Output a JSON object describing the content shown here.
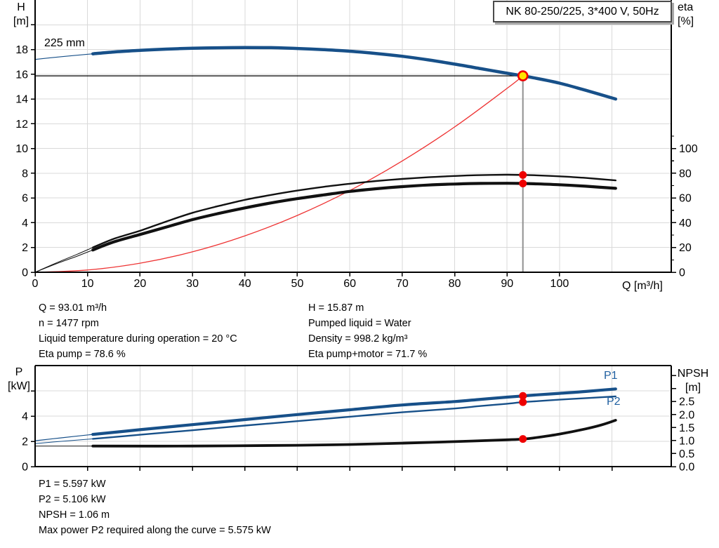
{
  "title_box": {
    "label": "NK 80-250/225, 3*400 V, 50Hz"
  },
  "axis_titles": {
    "head_unit_1": "H",
    "head_unit_2": "[m]",
    "eta_unit_1": "eta",
    "eta_unit_2": "[%]",
    "flow_unit": "Q [m³/h]",
    "power_unit_1": "P",
    "power_unit_2": "[kW]",
    "npsh_unit_1": "NPSH",
    "npsh_unit_2": "[m]"
  },
  "curve_labels": {
    "impeller": "225 mm",
    "p1": "P1",
    "p2": "P2"
  },
  "info_top": {
    "left": [
      "Q = 93.01 m³/h",
      "n = 1477 rpm",
      "Liquid temperature during operation = 20 °C",
      "Eta pump = 78.6 %"
    ],
    "right": [
      "H = 15.87 m",
      "Pumped liquid = Water",
      "Density = 998.2 kg/m³",
      "Eta pump+motor = 71.7 %"
    ]
  },
  "info_bottom": [
    "P1 = 5.597 kW",
    "P2 = 5.106 kW",
    "NPSH = 1.06 m",
    "Max power P2 required along the curve = 5.575 kW"
  ],
  "colors": {
    "curve_blue": "#175089",
    "curve_black": "#111111",
    "curve_red": "#ee3333",
    "marker_red": "#ee0000",
    "marker_yellow": "#ffe400",
    "grid": "#d9d9d9",
    "axis": "#000000",
    "duty_gray": "#909090",
    "label_blue": "#1f5fa0"
  },
  "chart_data": [
    {
      "type": "line",
      "title": "Pump curve H/eta vs Q",
      "x_axis": {
        "label": "Q [m³/h]",
        "min": 0,
        "max": 121.3,
        "tick_values": [
          0,
          10,
          20,
          30,
          40,
          50,
          60,
          70,
          80,
          90,
          100
        ],
        "tick_labels": [
          "0",
          "10",
          "20",
          "30",
          "40",
          "50",
          "60",
          "70",
          "80",
          "90",
          "100"
        ],
        "grid_values": [
          10,
          20,
          30,
          40,
          50,
          60,
          70,
          80,
          90,
          100,
          110
        ]
      },
      "y_left": {
        "label": "H [m]",
        "min": 0,
        "max": 22,
        "tick_values": [
          0,
          2,
          4,
          6,
          8,
          10,
          12,
          14,
          16,
          18,
          20
        ],
        "tick_labels": [
          "0",
          "2",
          "4",
          "6",
          "8",
          "10",
          "12",
          "14",
          "16",
          "18",
          ""
        ],
        "grid_values": [
          2,
          4,
          6,
          8,
          10,
          12,
          14,
          16,
          18,
          20
        ]
      },
      "y_right": {
        "label": "eta [%]",
        "min": 0,
        "max": 220,
        "tick_values": [
          0,
          20,
          40,
          60,
          80,
          100
        ],
        "tick_labels": [
          "0",
          "20",
          "40",
          "60",
          "80",
          "100"
        ],
        "minor_tick_values": [
          10,
          30,
          50,
          70,
          90,
          110
        ]
      },
      "series": [
        {
          "name": "system-curve",
          "axis": "left",
          "points": [
            [
              0,
              0
            ],
            [
              10,
              0.18
            ],
            [
              20,
              0.73
            ],
            [
              30,
              1.65
            ],
            [
              40,
              2.94
            ],
            [
              50,
              4.59
            ],
            [
              60,
              6.6
            ],
            [
              70,
              8.99
            ],
            [
              80,
              11.74
            ],
            [
              90,
              14.86
            ],
            [
              93.01,
              15.87
            ]
          ]
        },
        {
          "name": "eta-pump",
          "axis": "right",
          "points_thin": [
            [
              0,
              0
            ],
            [
              4,
              7.5
            ],
            [
              8,
              14.5
            ],
            [
              11,
              20
            ]
          ],
          "points": [
            [
              11,
              20
            ],
            [
              15,
              27
            ],
            [
              20,
              33.5
            ],
            [
              25,
              41
            ],
            [
              30,
              48
            ],
            [
              35,
              53.5
            ],
            [
              40,
              58.5
            ],
            [
              45,
              62.5
            ],
            [
              50,
              66
            ],
            [
              55,
              69
            ],
            [
              60,
              71.5
            ],
            [
              65,
              73.7
            ],
            [
              70,
              75.4
            ],
            [
              75,
              76.8
            ],
            [
              80,
              77.8
            ],
            [
              85,
              78.5
            ],
            [
              90,
              78.8
            ],
            [
              93.01,
              78.6
            ],
            [
              95,
              78.4
            ],
            [
              100,
              77.5
            ],
            [
              105,
              76.2
            ],
            [
              110.7,
              74.2
            ]
          ]
        },
        {
          "name": "eta-pump-motor",
          "axis": "right",
          "points_thin": [
            [
              0,
              0
            ],
            [
              4,
              6.8
            ],
            [
              8,
              13
            ],
            [
              11,
              18
            ]
          ],
          "points": [
            [
              11,
              18
            ],
            [
              15,
              24.5
            ],
            [
              20,
              30.5
            ],
            [
              25,
              36.5
            ],
            [
              30,
              42.5
            ],
            [
              35,
              47.5
            ],
            [
              40,
              52
            ],
            [
              45,
              56
            ],
            [
              50,
              59.5
            ],
            [
              55,
              62.5
            ],
            [
              60,
              65.3
            ],
            [
              65,
              67.5
            ],
            [
              70,
              69.2
            ],
            [
              75,
              70.5
            ],
            [
              80,
              71.3
            ],
            [
              85,
              71.8
            ],
            [
              90,
              71.9
            ],
            [
              93.01,
              71.7
            ],
            [
              95,
              71.5
            ],
            [
              100,
              70.7
            ],
            [
              105,
              69.5
            ],
            [
              110.7,
              67.8
            ]
          ]
        },
        {
          "name": "head-225mm",
          "axis": "left",
          "label": "225 mm",
          "points_thin": [
            [
              0,
              17.2
            ],
            [
              5,
              17.42
            ],
            [
              11,
              17.65
            ]
          ],
          "points": [
            [
              11,
              17.65
            ],
            [
              15,
              17.8
            ],
            [
              20,
              17.93
            ],
            [
              25,
              18.03
            ],
            [
              30,
              18.1
            ],
            [
              35,
              18.14
            ],
            [
              40,
              18.16
            ],
            [
              45,
              18.15
            ],
            [
              50,
              18.08
            ],
            [
              55,
              17.99
            ],
            [
              60,
              17.86
            ],
            [
              65,
              17.68
            ],
            [
              70,
              17.45
            ],
            [
              75,
              17.16
            ],
            [
              80,
              16.82
            ],
            [
              85,
              16.45
            ],
            [
              90,
              16.08
            ],
            [
              93.01,
              15.87
            ],
            [
              95,
              15.72
            ],
            [
              100,
              15.28
            ],
            [
              105,
              14.7
            ],
            [
              110.7,
              14.0
            ]
          ]
        }
      ],
      "duty_point": {
        "q": 93.01,
        "h": 15.87,
        "eta_pump": 78.6,
        "eta_pump_motor": 71.7
      },
      "duty_lines": {
        "horizontal_value": 15.87,
        "vertical_q": 93.01
      },
      "markers": [
        {
          "q": 93.01,
          "v": 78.6,
          "axis": "right",
          "style": "red"
        },
        {
          "q": 93.01,
          "v": 71.7,
          "axis": "right",
          "style": "red"
        },
        {
          "q": 93.01,
          "v": 15.87,
          "axis": "left",
          "style": "duty"
        }
      ]
    },
    {
      "type": "line",
      "title": "Power / NPSH vs Q",
      "x_axis": {
        "label": "",
        "min": 0,
        "max": 121.3,
        "tick_values": [
          10,
          20,
          30,
          40,
          50,
          60,
          70,
          80,
          90,
          100,
          110
        ],
        "tick_labels": [
          "",
          "",
          "",
          "",
          "",
          "",
          "",
          "",
          "",
          "",
          ""
        ],
        "grid_values": [
          10,
          20,
          30,
          40,
          50,
          60,
          70,
          80,
          90,
          100,
          110
        ]
      },
      "y_left": {
        "label": "P [kW]",
        "min": 0,
        "max": 8,
        "tick_values": [
          0,
          2,
          4,
          6
        ],
        "tick_labels": [
          "0",
          "2",
          "4",
          ""
        ],
        "grid_values": [
          2,
          4,
          6
        ]
      },
      "y_right": {
        "label": "NPSH [m]",
        "min": 0,
        "max": 3.88,
        "tick_values": [
          0,
          0.5,
          1,
          1.5,
          2,
          2.5,
          3,
          3.5
        ],
        "tick_labels": [
          "0.0",
          "0.5",
          "1.0",
          "1.5",
          "2.0",
          "2.5",
          "",
          ""
        ],
        "minor_tick_values": []
      },
      "series": [
        {
          "name": "npsh",
          "axis": "right",
          "points_thin": [
            [
              0,
              0.79
            ],
            [
              11,
              0.79
            ]
          ],
          "points": [
            [
              11,
              0.79
            ],
            [
              30,
              0.79
            ],
            [
              50,
              0.82
            ],
            [
              60,
              0.85
            ],
            [
              70,
              0.9
            ],
            [
              80,
              0.96
            ],
            [
              90,
              1.03
            ],
            [
              93.01,
              1.06
            ],
            [
              95,
              1.1
            ],
            [
              100,
              1.25
            ],
            [
              105,
              1.45
            ],
            [
              108,
              1.6
            ],
            [
              110.7,
              1.78
            ]
          ]
        },
        {
          "name": "p2",
          "axis": "left",
          "points_thin": [
            [
              0,
              1.82
            ],
            [
              5,
              2.0
            ],
            [
              11,
              2.2
            ]
          ],
          "points": [
            [
              11,
              2.2
            ],
            [
              20,
              2.52
            ],
            [
              30,
              2.88
            ],
            [
              40,
              3.25
            ],
            [
              50,
              3.6
            ],
            [
              60,
              3.95
            ],
            [
              70,
              4.3
            ],
            [
              80,
              4.6
            ],
            [
              85,
              4.8
            ],
            [
              90,
              4.98
            ],
            [
              93.01,
              5.106
            ],
            [
              95,
              5.16
            ],
            [
              100,
              5.3
            ],
            [
              105,
              5.42
            ],
            [
              110.7,
              5.56
            ]
          ]
        },
        {
          "name": "p1",
          "axis": "left",
          "points_thin": [
            [
              0,
              2.05
            ],
            [
              5,
              2.28
            ],
            [
              11,
              2.55
            ]
          ],
          "points": [
            [
              11,
              2.55
            ],
            [
              20,
              2.92
            ],
            [
              30,
              3.32
            ],
            [
              40,
              3.72
            ],
            [
              50,
              4.12
            ],
            [
              60,
              4.5
            ],
            [
              70,
              4.88
            ],
            [
              80,
              5.15
            ],
            [
              85,
              5.33
            ],
            [
              90,
              5.5
            ],
            [
              93.01,
              5.597
            ],
            [
              95,
              5.66
            ],
            [
              100,
              5.8
            ],
            [
              105,
              5.95
            ],
            [
              110.7,
              6.15
            ]
          ]
        }
      ],
      "duty_point": {
        "q": 93.01,
        "p1": 5.597,
        "p2": 5.106,
        "npsh": 1.06
      },
      "markers": [
        {
          "q": 93.01,
          "v": 5.597,
          "axis": "left",
          "style": "red"
        },
        {
          "q": 93.01,
          "v": 5.106,
          "axis": "left",
          "style": "red"
        },
        {
          "q": 93.01,
          "v": 1.06,
          "axis": "right",
          "style": "red"
        }
      ]
    }
  ]
}
